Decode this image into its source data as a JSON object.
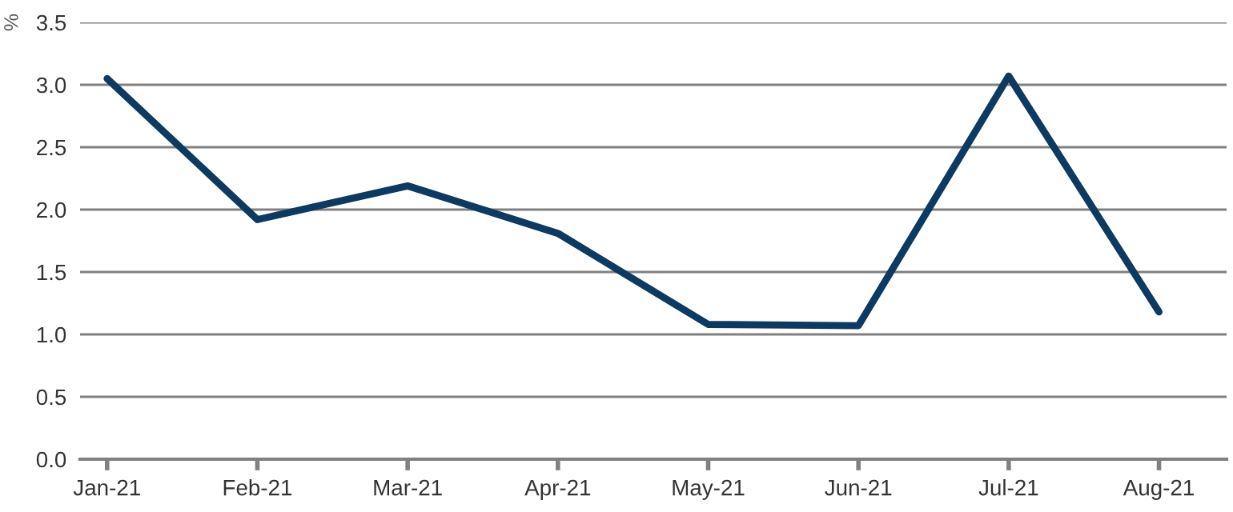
{
  "chart_data": {
    "type": "line",
    "ylabel": "%",
    "categories": [
      "Jan-21",
      "Feb-21",
      "Mar-21",
      "Apr-21",
      "May-21",
      "Jun-21",
      "Jul-21",
      "Aug-21"
    ],
    "series": [
      {
        "color": "#0d3a60",
        "values": [
          3.05,
          1.92,
          2.19,
          1.81,
          1.08,
          1.07,
          3.07,
          1.18
        ]
      }
    ],
    "ylim": [
      0,
      3.5
    ],
    "yticks": [
      {
        "value": 0,
        "label": "0.0"
      },
      {
        "value": 0.5,
        "label": "0.5"
      },
      {
        "value": 1,
        "label": "1.0"
      },
      {
        "value": 1.5,
        "label": "1.5"
      },
      {
        "value": 2,
        "label": "2.0"
      },
      {
        "value": 2.5,
        "label": "2.5"
      },
      {
        "value": 3,
        "label": "3.0"
      },
      {
        "value": 3.5,
        "label": "3.5"
      }
    ],
    "grid": "y",
    "marker": "none",
    "line_style": "solid",
    "legend": false
  }
}
